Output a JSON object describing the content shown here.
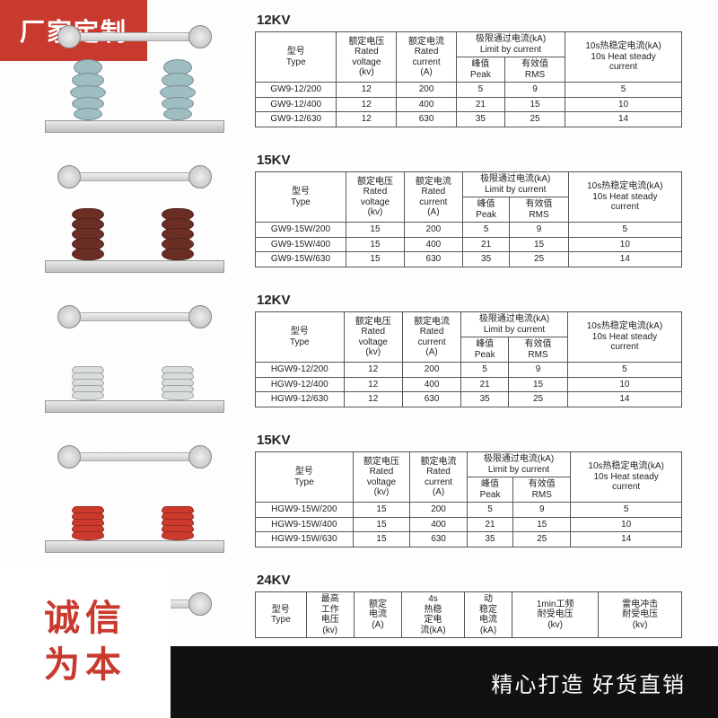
{
  "badge_top": "厂家定制",
  "bottom_left_l1": "诚信",
  "bottom_left_l2": "为本",
  "bottom_bar": "精心打造 好货直销",
  "headers_std": {
    "type": "型号\nType",
    "voltage": "额定电压\nRated\nvoltage\n(kv)",
    "current": "额定电流\nRated\ncurrent\n(A)",
    "limit": "极限通过电流(kA)\nLimit by current",
    "peak": "峰值\nPeak",
    "rms": "有效值\nRMS",
    "heat": "10s热稳定电流(kA)\n10s Heat steady\ncurrent"
  },
  "headers_24": {
    "type": "型号\nType",
    "work_v": "最高\n工作\n电压\n(kv)",
    "rated_i": "额定\n电流\n(A)",
    "h4s": "4s\n热稳\n定电\n流(kA)",
    "dyn": "动\n稳定\n电流\n(kA)",
    "pf1m": "1min工频\n耐受电压\n(kv)",
    "imp": "雷电冲击\n耐受电压\n(kv)"
  },
  "sections": [
    {
      "title": "12KV",
      "insulator_color": "#9fbec2",
      "insulator_style": "bulb",
      "rows": [
        [
          "GW9-12/200",
          "12",
          "200",
          "5",
          "9",
          "5"
        ],
        [
          "GW9-12/400",
          "12",
          "400",
          "21",
          "15",
          "10"
        ],
        [
          "GW9-12/630",
          "12",
          "630",
          "35",
          "25",
          "14"
        ]
      ]
    },
    {
      "title": "15KV",
      "insulator_color": "#6a2e25",
      "insulator_style": "stack",
      "rows": [
        [
          "GW9-15W/200",
          "15",
          "200",
          "5",
          "9",
          "5"
        ],
        [
          "GW9-15W/400",
          "15",
          "400",
          "21",
          "15",
          "10"
        ],
        [
          "GW9-15W/630",
          "15",
          "630",
          "35",
          "25",
          "14"
        ]
      ]
    },
    {
      "title": "12KV",
      "insulator_color": "#d9dcdc",
      "insulator_style": "shed",
      "rows": [
        [
          "HGW9-12/200",
          "12",
          "200",
          "5",
          "9",
          "5"
        ],
        [
          "HGW9-12/400",
          "12",
          "400",
          "21",
          "15",
          "10"
        ],
        [
          "HGW9-12/630",
          "12",
          "630",
          "35",
          "25",
          "14"
        ]
      ]
    },
    {
      "title": "15KV",
      "insulator_color": "#cc3a2b",
      "insulator_style": "shed",
      "rows": [
        [
          "HGW9-15W/200",
          "15",
          "200",
          "5",
          "9",
          "5"
        ],
        [
          "HGW9-15W/400",
          "15",
          "400",
          "21",
          "15",
          "10"
        ],
        [
          "HGW9-15W/630",
          "15",
          "630",
          "35",
          "25",
          "14"
        ]
      ]
    }
  ],
  "section24_title": "24KV"
}
